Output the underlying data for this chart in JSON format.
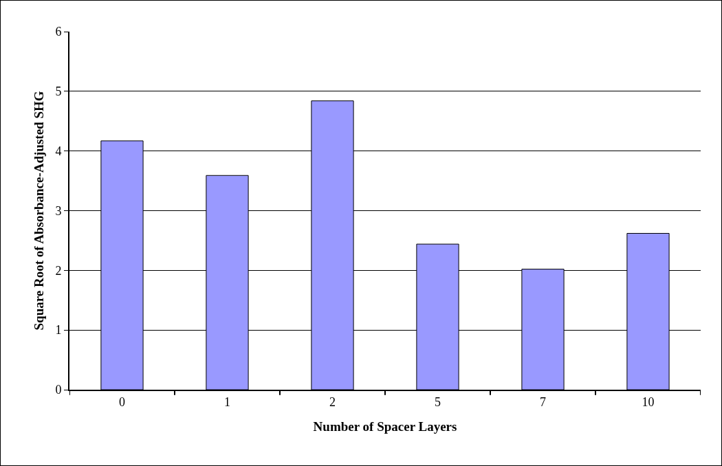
{
  "chart_data": {
    "type": "bar",
    "xlabel": "Number of Spacer Layers",
    "ylabel": "Square Root of Absorbance-Adjusted SHG",
    "categories": [
      "0",
      "1",
      "2",
      "5",
      "7",
      "10"
    ],
    "values": [
      4.17,
      3.59,
      4.84,
      2.44,
      2.02,
      2.62
    ],
    "color": "#9999ff",
    "ylim": [
      0,
      6
    ],
    "yticks": [
      0,
      1,
      2,
      3,
      4,
      5,
      6
    ],
    "grid": "y"
  }
}
